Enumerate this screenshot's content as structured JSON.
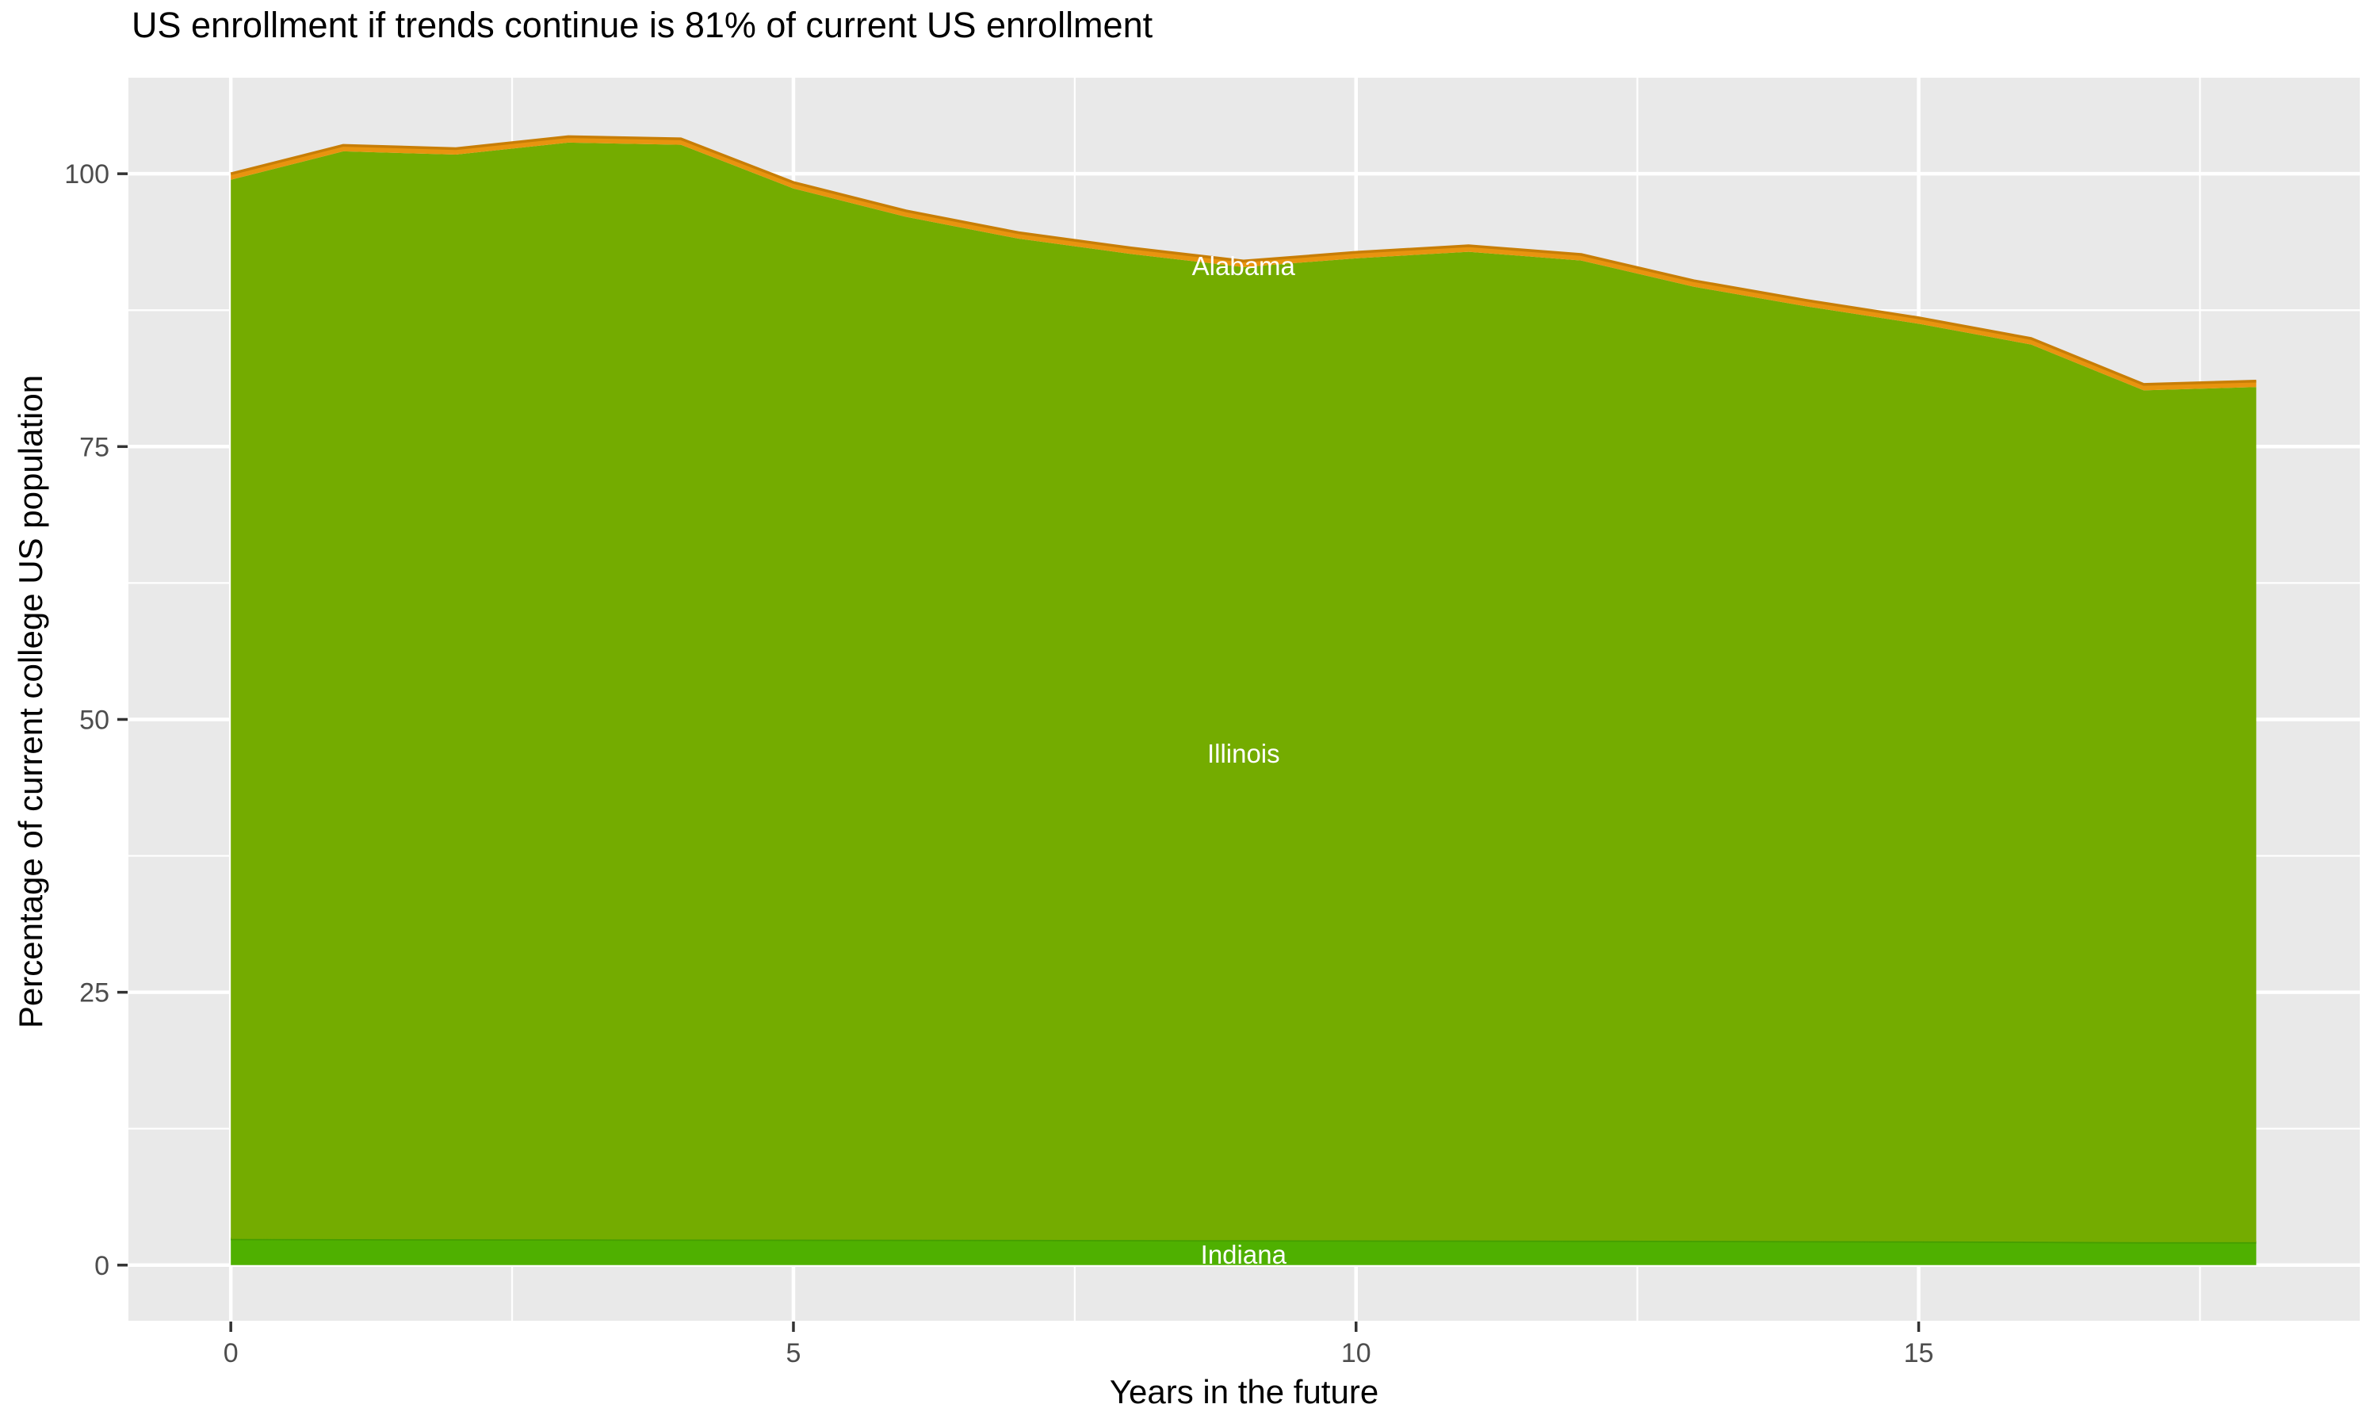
{
  "title": "US enrollment if trends continue is 81% of current US enrollment",
  "axes": {
    "x": {
      "label": "Years in the future",
      "ticks": [
        0,
        5,
        10,
        15
      ],
      "minor_ticks": [
        2.5,
        7.5,
        12.5,
        17.5
      ],
      "range": [
        -0.91,
        18.92
      ]
    },
    "y": {
      "label": "Percentage of current college US population",
      "ticks": [
        0,
        25,
        50,
        75,
        100
      ],
      "minor_ticks": [
        12.5,
        37.5,
        62.5,
        87.5
      ],
      "range": [
        -5.1,
        108.8
      ]
    }
  },
  "chart_data": {
    "type": "area",
    "stacked": true,
    "grid": true,
    "legend_position": "none",
    "x": [
      0,
      1,
      2,
      3,
      4,
      5,
      6,
      7,
      8,
      9,
      10,
      11,
      12,
      13,
      14,
      15,
      16,
      17,
      18
    ],
    "series": [
      {
        "name": "Indiana",
        "fill": "#4FB000",
        "edge": "#459E00",
        "values": [
          2.4,
          2.38,
          2.37,
          2.36,
          2.35,
          2.34,
          2.33,
          2.32,
          2.3,
          2.28,
          2.27,
          2.26,
          2.25,
          2.23,
          2.2,
          2.18,
          2.15,
          2.1,
          2.1
        ]
      },
      {
        "name": "Illinois",
        "fill": "#74AC00",
        "edge": "",
        "values": [
          97.05,
          99.67,
          99.38,
          100.49,
          100.3,
          96.31,
          93.72,
          91.73,
          90.35,
          89.17,
          89.98,
          90.59,
          89.8,
          87.42,
          85.65,
          84.07,
          82.2,
          78.05,
          78.35
        ]
      },
      {
        "name": "Alabama",
        "fill": "#E8940F",
        "edge": "#C87E06",
        "values": [
          0.55,
          0.55,
          0.55,
          0.55,
          0.55,
          0.55,
          0.55,
          0.55,
          0.55,
          0.55,
          0.55,
          0.55,
          0.55,
          0.55,
          0.55,
          0.55,
          0.55,
          0.55,
          0.55
        ]
      }
    ],
    "stack_totals": [
      100.0,
      102.6,
      102.3,
      103.4,
      103.2,
      99.2,
      96.6,
      94.6,
      93.2,
      92.0,
      92.8,
      93.4,
      92.6,
      90.2,
      88.4,
      86.8,
      84.9,
      80.7,
      81.0
    ],
    "area_labels": [
      {
        "text": "Alabama",
        "x": 9,
        "y": 91.6,
        "color": "#FFFFFF"
      },
      {
        "text": "Illinois",
        "x": 9,
        "y": 46.9,
        "color": "#FFFFFF"
      },
      {
        "text": "Indiana",
        "x": 9,
        "y": 1.0,
        "color": "#FFFFFF"
      }
    ],
    "style": {
      "panel_bg": "#E9E9E9",
      "grid_color": "#FFFFFF",
      "tick_text_color": "#4D4D4D",
      "tick_mark_color": "#333333"
    }
  }
}
